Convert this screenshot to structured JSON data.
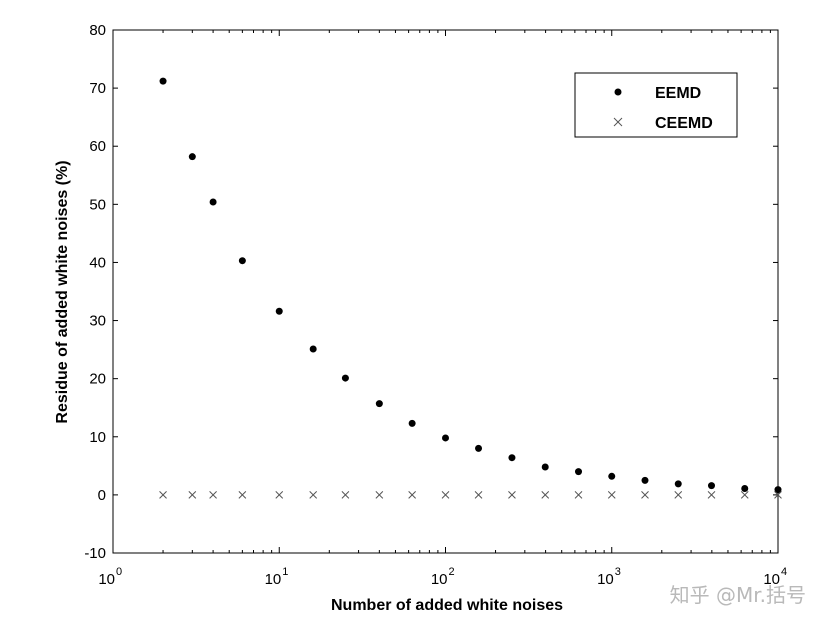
{
  "chart_data": {
    "type": "scatter",
    "xscale": "log",
    "xlabel": "Number of added white noises",
    "ylabel": "Residue of added white noises (%)",
    "xlim": [
      1,
      10000
    ],
    "ylim": [
      -10,
      80
    ],
    "xticks": [
      {
        "base": "10",
        "exp": "0",
        "value": 1
      },
      {
        "base": "10",
        "exp": "1",
        "value": 10
      },
      {
        "base": "10",
        "exp": "2",
        "value": 100
      },
      {
        "base": "10",
        "exp": "3",
        "value": 1000
      },
      {
        "base": "10",
        "exp": "4",
        "value": 10000
      }
    ],
    "yticks": [
      "-10",
      "0",
      "10",
      "20",
      "30",
      "40",
      "50",
      "60",
      "70",
      "80"
    ],
    "legend_position": "top-right",
    "grid": false,
    "series": [
      {
        "name": "EEMD",
        "marker": "dot",
        "color": "#000000",
        "x": [
          2,
          3,
          4,
          6,
          10,
          16,
          25,
          40,
          63,
          100,
          158,
          251,
          398,
          631,
          1000,
          1585,
          2512,
          3981,
          6310,
          10000
        ],
        "y": [
          71.2,
          58.2,
          50.4,
          40.3,
          31.6,
          25.1,
          20.1,
          15.7,
          12.3,
          9.8,
          8.0,
          6.4,
          4.8,
          4.0,
          3.2,
          2.5,
          1.9,
          1.6,
          1.1,
          0.9
        ]
      },
      {
        "name": "CEEMD",
        "marker": "x",
        "color": "#000000",
        "x": [
          2,
          3,
          4,
          6,
          10,
          16,
          25,
          40,
          63,
          100,
          158,
          251,
          398,
          631,
          1000,
          1585,
          2512,
          3981,
          6310,
          10000
        ],
        "y": [
          0,
          0,
          0,
          0,
          0,
          0,
          0,
          0,
          0,
          0,
          0,
          0,
          0,
          0,
          0,
          0,
          0,
          0,
          0,
          0
        ]
      }
    ]
  },
  "watermark": "知乎 @Mr.括号"
}
